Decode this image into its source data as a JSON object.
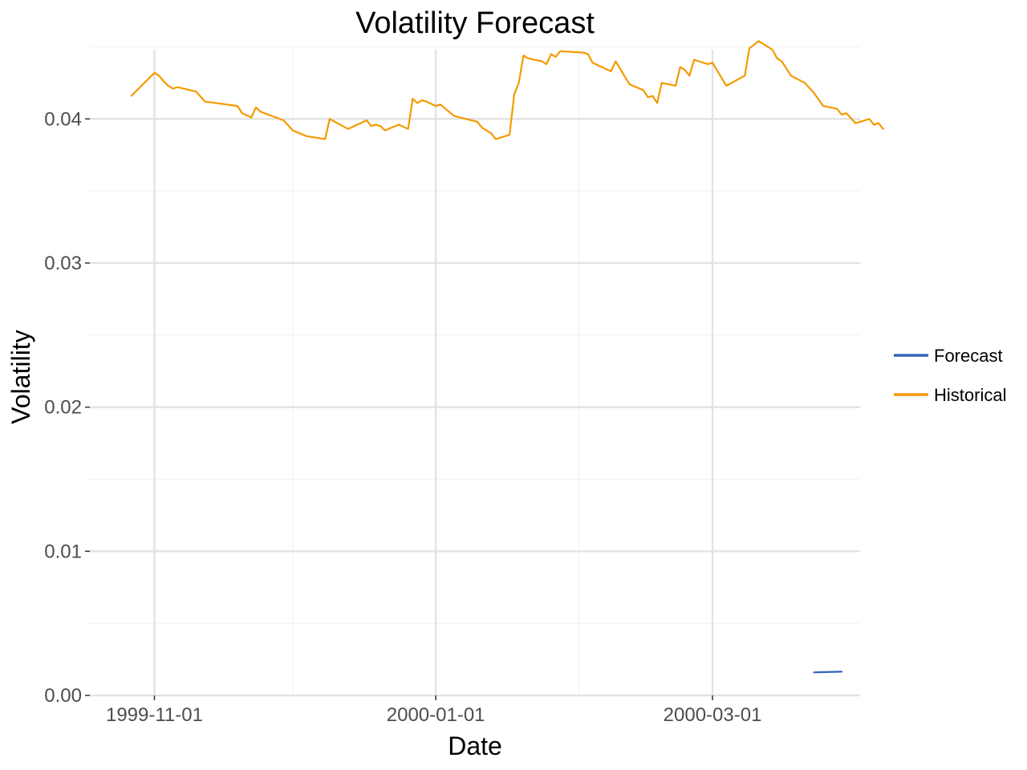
{
  "chart_data": {
    "type": "line",
    "title": "Volatility Forecast",
    "xlabel": "Date",
    "ylabel": "Volatility",
    "xlim": [
      "1999-10-18",
      "2000-04-02"
    ],
    "ylim": [
      0.0,
      0.0448
    ],
    "x_ticks": [
      "1999-11-01",
      "2000-01-01",
      "2000-03-01"
    ],
    "x_minor_ticks": [
      "1999-12-01",
      "2000-02-01"
    ],
    "y_ticks": [
      0.0,
      0.01,
      0.02,
      0.03,
      0.04
    ],
    "y_tick_labels": [
      "0.00",
      "0.01",
      "0.02",
      "0.03",
      "0.04"
    ],
    "y_minor_ticks": [
      0.005,
      0.015,
      0.025,
      0.035,
      0.045
    ],
    "grid": true,
    "legend_position": "right",
    "series": [
      {
        "name": "Forecast",
        "color": "#3366b8",
        "points": [
          [
            "2000-03-23",
            0.0016
          ],
          [
            "2000-03-29",
            0.00165
          ]
        ]
      },
      {
        "name": "Historical",
        "color": "#f49a00",
        "points": [
          [
            "1999-10-27",
            0.0416
          ],
          [
            "1999-11-01",
            0.0432
          ],
          [
            "1999-11-02",
            0.043
          ],
          [
            "1999-11-03",
            0.0426
          ],
          [
            "1999-11-04",
            0.0423
          ],
          [
            "1999-11-05",
            0.0421
          ],
          [
            "1999-11-06",
            0.0422
          ],
          [
            "1999-11-10",
            0.0419
          ],
          [
            "1999-11-12",
            0.0412
          ],
          [
            "1999-11-19",
            0.0409
          ],
          [
            "1999-11-20",
            0.0404
          ],
          [
            "1999-11-22",
            0.0401
          ],
          [
            "1999-11-23",
            0.0408
          ],
          [
            "1999-11-24",
            0.0405
          ],
          [
            "1999-11-29",
            0.0399
          ],
          [
            "1999-12-01",
            0.0392
          ],
          [
            "1999-12-04",
            0.0388
          ],
          [
            "1999-12-08",
            0.0386
          ],
          [
            "1999-12-09",
            0.04
          ],
          [
            "1999-12-13",
            0.0393
          ],
          [
            "1999-12-17",
            0.0399
          ],
          [
            "1999-12-18",
            0.0395
          ],
          [
            "1999-12-19",
            0.0396
          ],
          [
            "1999-12-20",
            0.0395
          ],
          [
            "1999-12-21",
            0.0392
          ],
          [
            "1999-12-24",
            0.0396
          ],
          [
            "1999-12-26",
            0.0393
          ],
          [
            "1999-12-27",
            0.0414
          ],
          [
            "1999-12-28",
            0.0411
          ],
          [
            "1999-12-29",
            0.0413
          ],
          [
            "1999-12-30",
            0.0412
          ],
          [
            "2000-01-01",
            0.0409
          ],
          [
            "2000-01-02",
            0.041
          ],
          [
            "2000-01-05",
            0.0402
          ],
          [
            "2000-01-10",
            0.0398
          ],
          [
            "2000-01-11",
            0.0394
          ],
          [
            "2000-01-13",
            0.039
          ],
          [
            "2000-01-14",
            0.0386
          ],
          [
            "2000-01-16",
            0.0388
          ],
          [
            "2000-01-17",
            0.0389
          ],
          [
            "2000-01-18",
            0.0417
          ],
          [
            "2000-01-19",
            0.0425
          ],
          [
            "2000-01-20",
            0.0444
          ],
          [
            "2000-01-21",
            0.0442
          ],
          [
            "2000-01-24",
            0.044
          ],
          [
            "2000-01-25",
            0.0438
          ],
          [
            "2000-01-26",
            0.0445
          ],
          [
            "2000-01-27",
            0.0443
          ],
          [
            "2000-01-28",
            0.0447
          ],
          [
            "2000-02-02",
            0.0446
          ],
          [
            "2000-02-03",
            0.0445
          ],
          [
            "2000-02-04",
            0.0439
          ],
          [
            "2000-02-08",
            0.0433
          ],
          [
            "2000-02-09",
            0.044
          ],
          [
            "2000-02-12",
            0.0424
          ],
          [
            "2000-02-15",
            0.042
          ],
          [
            "2000-02-16",
            0.0415
          ],
          [
            "2000-02-17",
            0.0416
          ],
          [
            "2000-02-18",
            0.0411
          ],
          [
            "2000-02-19",
            0.0425
          ],
          [
            "2000-02-22",
            0.0423
          ],
          [
            "2000-02-23",
            0.0436
          ],
          [
            "2000-02-24",
            0.0434
          ],
          [
            "2000-02-25",
            0.043
          ],
          [
            "2000-02-26",
            0.0441
          ],
          [
            "2000-02-29",
            0.0438
          ],
          [
            "2000-03-01",
            0.0439
          ],
          [
            "2000-03-04",
            0.0423
          ],
          [
            "2000-03-08",
            0.043
          ],
          [
            "2000-03-09",
            0.0449
          ],
          [
            "2000-03-11",
            0.0454
          ],
          [
            "2000-03-14",
            0.0448
          ],
          [
            "2000-03-15",
            0.0442
          ],
          [
            "2000-03-16",
            0.044
          ],
          [
            "2000-03-18",
            0.043
          ],
          [
            "2000-03-21",
            0.0425
          ],
          [
            "2000-03-23",
            0.0418
          ],
          [
            "2000-03-25",
            0.0409
          ],
          [
            "2000-03-28",
            0.0407
          ],
          [
            "2000-03-29",
            0.0403
          ],
          [
            "2000-03-30",
            0.0404
          ],
          [
            "2000-04-01",
            0.0397
          ],
          [
            "2000-04-04",
            0.04
          ],
          [
            "2000-04-05",
            0.0396
          ],
          [
            "2000-04-06",
            0.0397
          ],
          [
            "2000-04-07",
            0.0393
          ]
        ]
      }
    ]
  }
}
